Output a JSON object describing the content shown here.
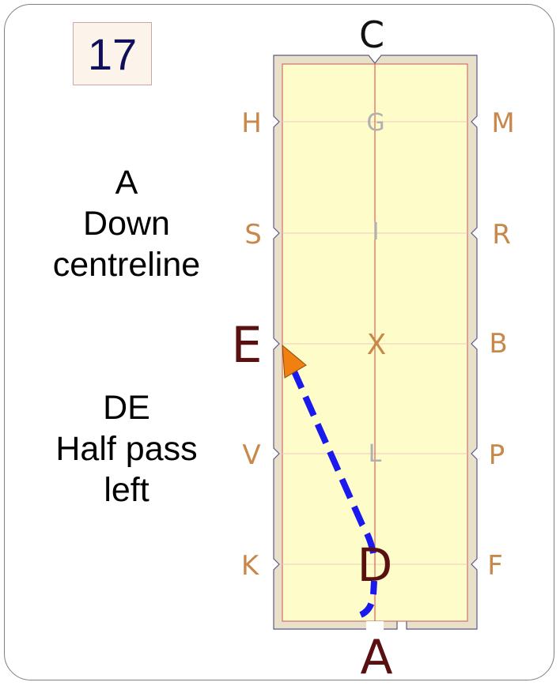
{
  "movement_number": "17",
  "instructions": [
    {
      "lines": [
        "A",
        "Down",
        "centreline"
      ]
    },
    {
      "lines": [
        "DE",
        "Half pass",
        "left"
      ]
    }
  ],
  "arena_markers": {
    "top": "C",
    "bottom": "A",
    "left": [
      "H",
      "S",
      "E",
      "V",
      "K"
    ],
    "right": [
      "M",
      "R",
      "B",
      "P",
      "F"
    ],
    "center": [
      "G",
      "I",
      "X",
      "L",
      "D"
    ]
  },
  "highlighted_markers": [
    "E",
    "D",
    "A"
  ],
  "colors": {
    "arena_fill": "#fefcc8",
    "arena_border": "#e8e0c8",
    "outline": "#5a5a8a",
    "centerline": "#e06060",
    "marker_letter": "#c8884a",
    "center_letter_faded": "#b0b0b0",
    "highlight_letter": "#5a1010",
    "path": "#1a1aee",
    "arrow": "#f08010"
  }
}
